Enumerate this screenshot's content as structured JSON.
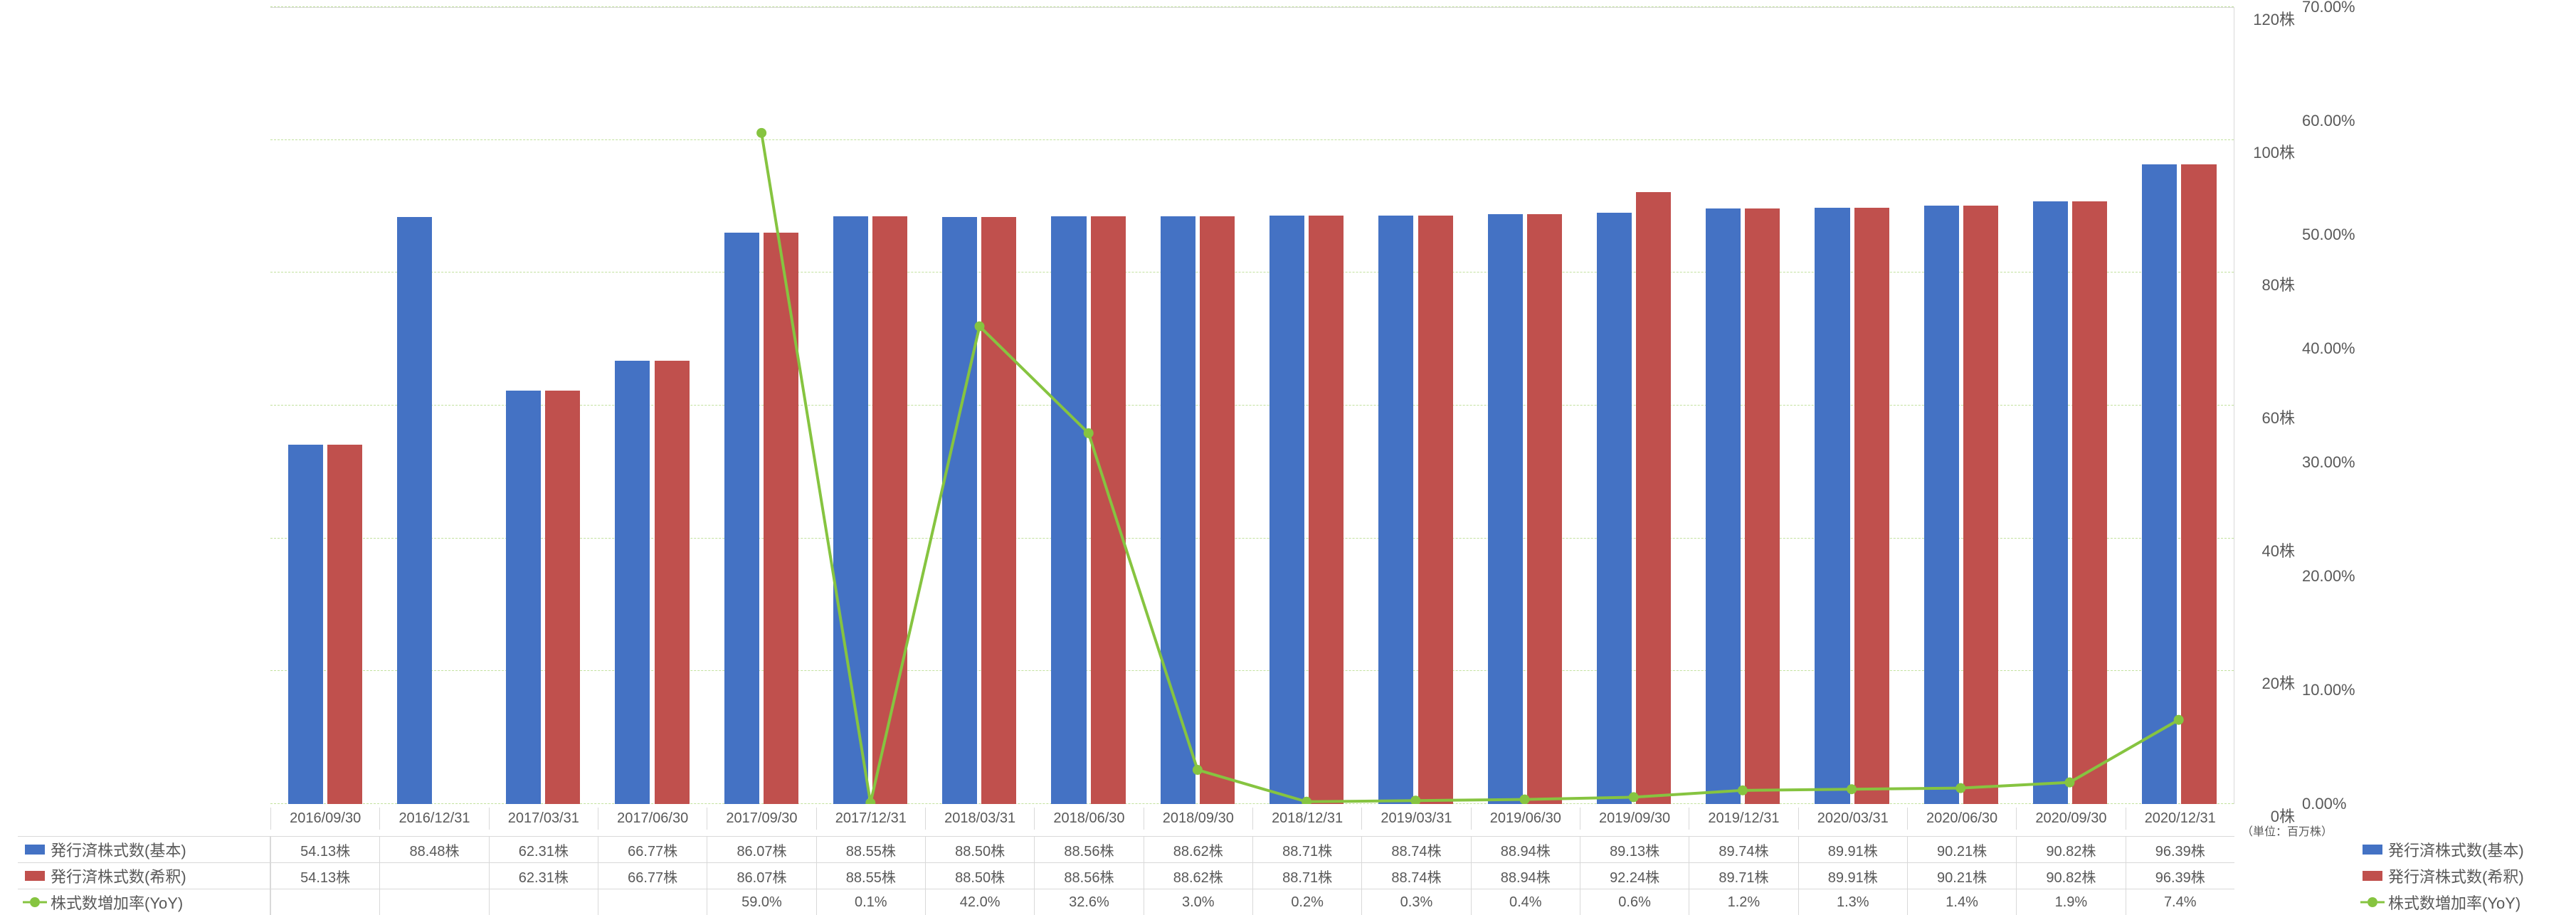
{
  "chart": {
    "type": "grouped-bar-with-line",
    "background_color": "#ffffff",
    "grid_color": "#86c440",
    "grid_dash": "4 4",
    "text_color": "#595959",
    "label_fontsize": 22,
    "cell_fontsize": 20,
    "unit_note": "（単位：百万株）",
    "y_left": {
      "min": 0,
      "max": 120,
      "step": 20,
      "suffix": "株"
    },
    "y_right": {
      "min": 0,
      "max": 0.7,
      "step": 0.1,
      "suffix": "%",
      "format": "pct2"
    },
    "categories": [
      "2016/09/30",
      "2016/12/31",
      "2017/03/31",
      "2017/06/30",
      "2017/09/30",
      "2017/12/31",
      "2018/03/31",
      "2018/06/30",
      "2018/09/30",
      "2018/12/31",
      "2019/03/31",
      "2019/06/30",
      "2019/09/30",
      "2019/12/31",
      "2020/03/31",
      "2020/06/30",
      "2020/09/30",
      "2020/12/31"
    ],
    "series": {
      "basic": {
        "label": "発行済株式数(基本)",
        "color": "#4472c4",
        "values": [
          54.13,
          88.48,
          62.31,
          66.77,
          86.07,
          88.55,
          88.5,
          88.56,
          88.62,
          88.71,
          88.74,
          88.94,
          89.13,
          89.74,
          89.91,
          90.21,
          90.82,
          96.39
        ]
      },
      "diluted": {
        "label": "発行済株式数(希釈)",
        "color": "#c0504d",
        "values": [
          54.13,
          null,
          62.31,
          66.77,
          86.07,
          88.55,
          88.5,
          88.56,
          88.62,
          88.71,
          88.74,
          88.94,
          92.24,
          89.71,
          89.91,
          90.21,
          90.82,
          96.39
        ]
      },
      "yoy": {
        "label": "株式数増加率(YoY)",
        "color": "#86c440",
        "marker_size": 14,
        "line_width": 4,
        "values_pct": [
          null,
          null,
          null,
          null,
          59.0,
          0.1,
          42.0,
          32.6,
          3.0,
          0.2,
          0.3,
          0.4,
          0.6,
          1.2,
          1.3,
          1.4,
          1.9,
          7.4
        ]
      }
    },
    "row_headers": [
      "発行済株式数(基本)",
      "発行済株式数(希釈)",
      "株式数増加率(YoY)"
    ],
    "value_suffix": "株"
  }
}
